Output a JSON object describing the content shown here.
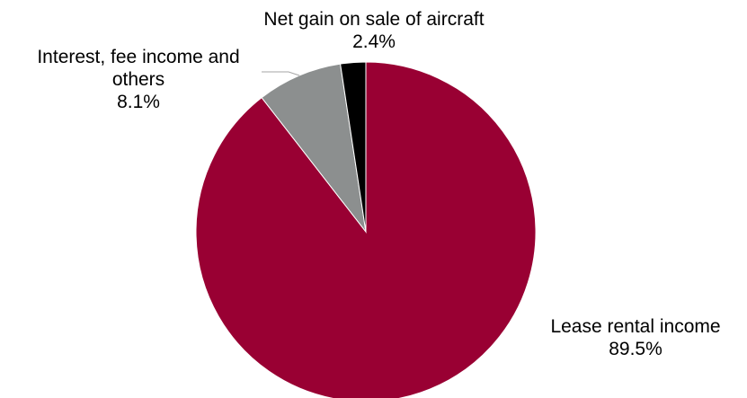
{
  "chart_data": {
    "type": "pie",
    "title": "",
    "slices": [
      {
        "name": "Lease rental income",
        "value": 89.5,
        "value_label": "89.5%",
        "label_lines": [
          "Lease rental income",
          "89.5%"
        ],
        "color": "#990033"
      },
      {
        "name": "Interest, fee income and others",
        "value": 8.1,
        "value_label": "8.1%",
        "label_lines": [
          "Interest, fee income and",
          "others",
          "8.1%"
        ],
        "color": "#8C8F8F"
      },
      {
        "name": "Net gain on sale of aircraft",
        "value": 2.4,
        "value_label": "2.4%",
        "label_lines": [
          "Net gain on sale of aircraft",
          "2.4%"
        ],
        "color": "#000000"
      }
    ],
    "start_angle": "12 o'clock",
    "direction": "clockwise",
    "legend": "none"
  }
}
